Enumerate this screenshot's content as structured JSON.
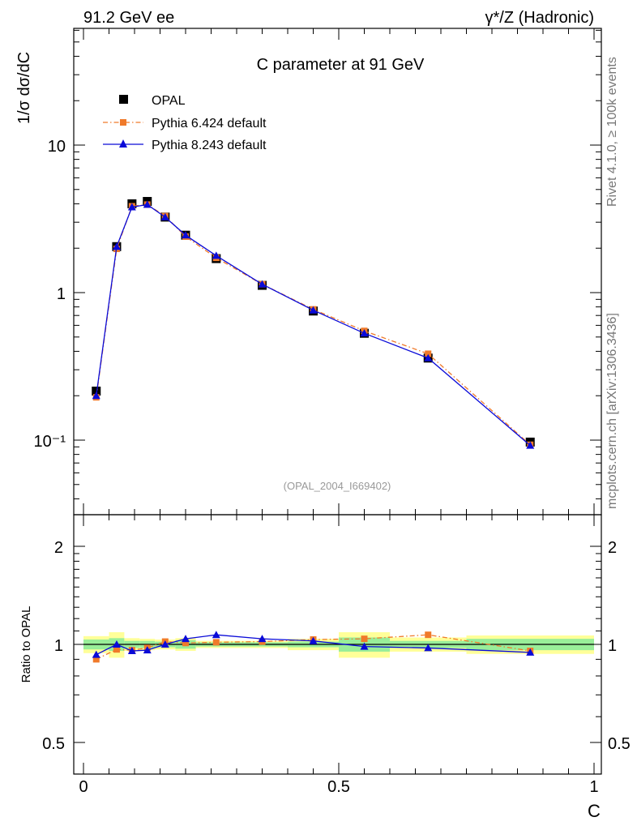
{
  "header": {
    "left": "91.2 GeV ee",
    "right": "γ*/Z (Hadronic)"
  },
  "side_text": {
    "rivet": "Rivet 4.1.0, ≥ 100k events",
    "mcplots": "mcplots.cern.ch [arXiv:1306.3436]"
  },
  "main_plot": {
    "title": "C parameter at 91 GeV",
    "ylabel": "1/σ   dσ/dC",
    "analysis_label": "(OPAL_2004_I669402)",
    "y_tick_labels": [
      "10",
      "1",
      "10⁻¹"
    ],
    "legend": [
      {
        "label": "OPAL",
        "color": "#000000",
        "marker": "square"
      },
      {
        "label": "Pythia 6.424 default",
        "color": "#f07a2a",
        "marker": "square",
        "line": "dashdot"
      },
      {
        "label": "Pythia 8.243 default",
        "color": "#0a0ad8",
        "marker": "triangle",
        "line": "solid"
      }
    ]
  },
  "ratio_plot": {
    "ylabel": "Ratio to OPAL",
    "y_tick_labels_left": [
      "2",
      "1",
      "0.5"
    ],
    "y_tick_labels_right": [
      "2",
      "1",
      "0.5"
    ]
  },
  "x_axis": {
    "label": "C",
    "tick_labels": [
      "0",
      "0.5",
      "1"
    ]
  },
  "chart_data": [
    {
      "type": "line",
      "title": "C parameter at 91 GeV",
      "xlabel": "C",
      "ylabel": "1/σ dσ/dC",
      "yscale": "log",
      "xlim": [
        0,
        1
      ],
      "ylim": [
        0.035,
        70
      ],
      "x": [
        0.025,
        0.065,
        0.095,
        0.125,
        0.16,
        0.2,
        0.26,
        0.35,
        0.45,
        0.55,
        0.675,
        0.875
      ],
      "bin_edges": [
        0.0,
        0.05,
        0.08,
        0.11,
        0.14,
        0.18,
        0.22,
        0.3,
        0.4,
        0.5,
        0.6,
        0.75,
        1.0
      ],
      "series": [
        {
          "name": "OPAL",
          "values": [
            0.215,
            2.05,
            4.0,
            4.15,
            3.25,
            2.45,
            1.7,
            1.12,
            0.75,
            0.53,
            0.36,
            0.097
          ]
        },
        {
          "name": "Pythia 6.424 default",
          "values": [
            0.195,
            1.98,
            3.85,
            3.95,
            3.3,
            2.4,
            1.72,
            1.14,
            0.77,
            0.55,
            0.385,
            0.093
          ]
        },
        {
          "name": "Pythia 8.243 default",
          "values": [
            0.2,
            2.05,
            3.8,
            3.95,
            3.25,
            2.45,
            1.78,
            1.14,
            0.76,
            0.53,
            0.36,
            0.092
          ]
        }
      ]
    },
    {
      "type": "line",
      "title": "",
      "xlabel": "C",
      "ylabel": "Ratio to OPAL",
      "yscale": "log",
      "xlim": [
        0,
        1
      ],
      "ylim": [
        0.4,
        2.4
      ],
      "x": [
        0.025,
        0.065,
        0.095,
        0.125,
        0.16,
        0.2,
        0.26,
        0.35,
        0.45,
        0.55,
        0.675,
        0.875
      ],
      "bin_edges": [
        0.0,
        0.05,
        0.08,
        0.11,
        0.14,
        0.18,
        0.22,
        0.3,
        0.4,
        0.5,
        0.6,
        0.75,
        1.0
      ],
      "band_inner": [
        0.035,
        0.045,
        0.025,
        0.025,
        0.02,
        0.03,
        0.015,
        0.015,
        0.02,
        0.05,
        0.025,
        0.04
      ],
      "band_outer": [
        0.06,
        0.09,
        0.045,
        0.04,
        0.035,
        0.045,
        0.025,
        0.025,
        0.04,
        0.09,
        0.05,
        0.065
      ],
      "series": [
        {
          "name": "Pythia 6.424 default",
          "values": [
            0.9,
            0.965,
            0.96,
            0.975,
            1.02,
            1.01,
            1.015,
            1.02,
            1.035,
            1.04,
            1.07,
            0.955
          ]
        },
        {
          "name": "Pythia 8.243 default",
          "values": [
            0.93,
            1.0,
            0.955,
            0.96,
            1.0,
            1.04,
            1.07,
            1.04,
            1.025,
            0.985,
            0.975,
            0.945
          ]
        }
      ]
    }
  ]
}
